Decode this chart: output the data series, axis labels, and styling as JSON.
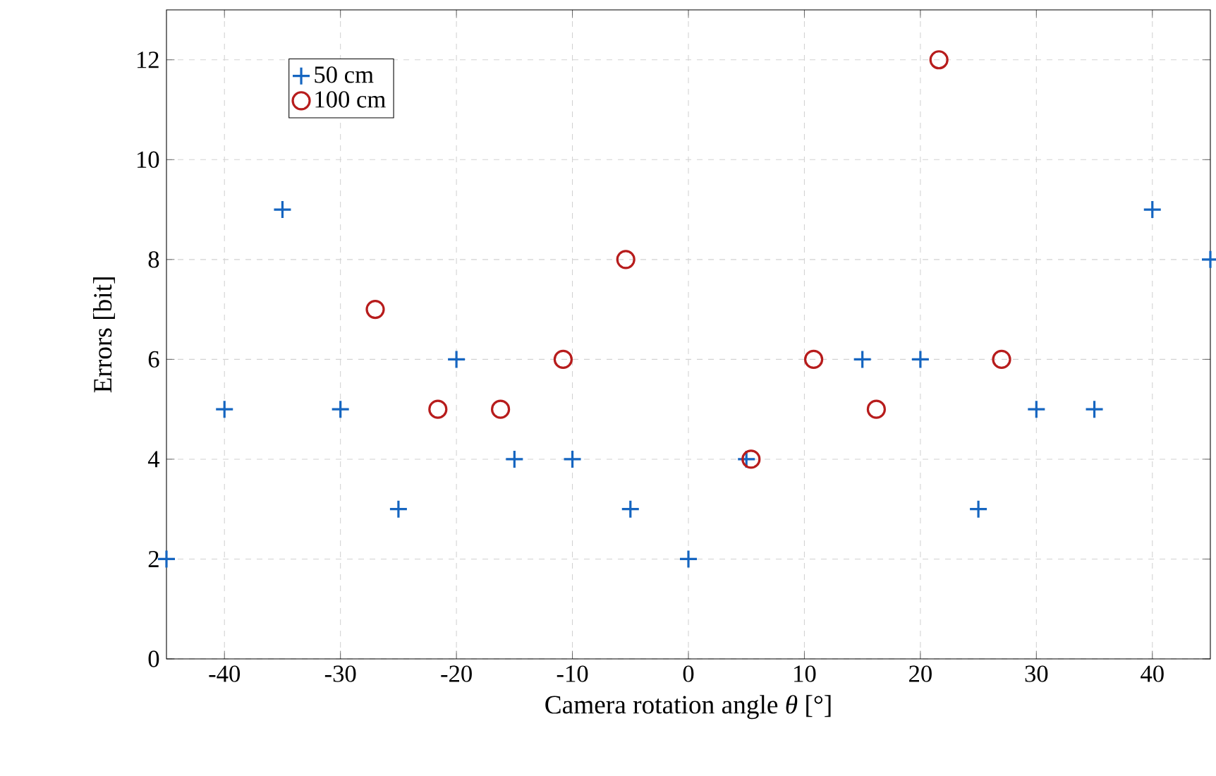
{
  "chart_data": {
    "type": "scatter",
    "xlabel": "Camera rotation angle *θ* [°]",
    "ylabel": "Errors [bit]",
    "xlim": [
      -45,
      45
    ],
    "ylim": [
      0,
      13
    ],
    "xticks": [
      -40,
      -30,
      -20,
      -10,
      0,
      10,
      20,
      30,
      40
    ],
    "yticks": [
      0,
      2,
      4,
      6,
      8,
      10,
      12
    ],
    "grid": true,
    "legend": "top left",
    "series": [
      {
        "name": "50 cm",
        "color": "#1565c0",
        "marker": "cross",
        "x": [
          -45,
          -40,
          -35,
          -30,
          -25,
          -20,
          -15,
          -10,
          -5,
          0,
          5,
          15,
          20,
          25,
          30,
          35,
          40,
          45
        ],
        "values": [
          2,
          5,
          9,
          5,
          3,
          6,
          4,
          4,
          3,
          2,
          4,
          6,
          6,
          3,
          5,
          5,
          9,
          8
        ]
      },
      {
        "name": "100 cm",
        "color": "#b71c1c",
        "marker": "circle",
        "x": [
          -27,
          -21.6,
          -16.2,
          -10.8,
          -5.4,
          5.4,
          10.8,
          16.2,
          21.6,
          27
        ],
        "values": [
          7,
          5,
          5,
          6,
          8,
          4,
          6,
          5,
          12,
          6
        ]
      }
    ]
  }
}
